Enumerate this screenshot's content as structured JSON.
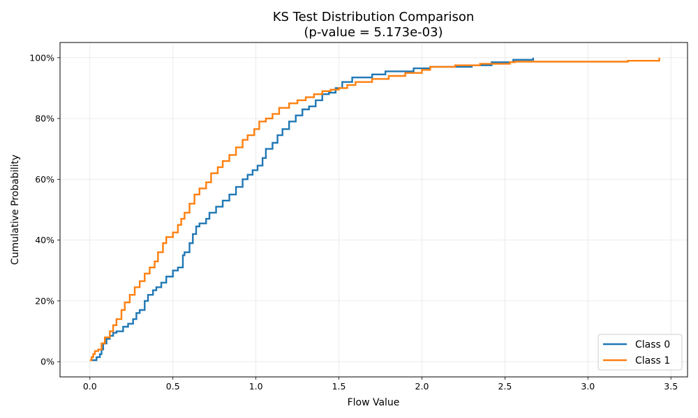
{
  "chart_data": {
    "type": "line",
    "step": true,
    "title_line1": "KS Test Distribution Comparison",
    "title_line2": "(p-value = 5.173e-03)",
    "xlabel": "Flow Value",
    "ylabel": "Cumulative Probability",
    "xlim": [
      -0.18,
      3.6
    ],
    "ylim": [
      -0.05,
      1.05
    ],
    "xticks": [
      0.0,
      0.5,
      1.0,
      1.5,
      2.0,
      2.5,
      3.0,
      3.5
    ],
    "xtick_labels": [
      "0.0",
      "0.5",
      "1.0",
      "1.5",
      "2.0",
      "2.5",
      "3.0",
      "3.5"
    ],
    "yticks": [
      0,
      0.2,
      0.4,
      0.6,
      0.8,
      1.0
    ],
    "ytick_labels": [
      "0%",
      "20%",
      "40%",
      "60%",
      "80%",
      "100%"
    ],
    "grid": true,
    "legend_position": "bottom-right",
    "series": [
      {
        "name": "Class 0",
        "color": "#1f77b4",
        "x": [
          0.01,
          0.04,
          0.06,
          0.07,
          0.08,
          0.1,
          0.12,
          0.14,
          0.16,
          0.2,
          0.23,
          0.26,
          0.28,
          0.3,
          0.33,
          0.35,
          0.38,
          0.4,
          0.43,
          0.46,
          0.5,
          0.53,
          0.56,
          0.57,
          0.6,
          0.62,
          0.64,
          0.66,
          0.7,
          0.72,
          0.76,
          0.8,
          0.84,
          0.88,
          0.92,
          0.95,
          0.98,
          1.01,
          1.04,
          1.06,
          1.1,
          1.13,
          1.16,
          1.2,
          1.24,
          1.28,
          1.32,
          1.36,
          1.4,
          1.44,
          1.48,
          1.52,
          1.58,
          1.7,
          1.78,
          1.95,
          2.05,
          2.3,
          2.42,
          2.55,
          2.67
        ],
        "y": [
          0.005,
          0.015,
          0.025,
          0.04,
          0.06,
          0.075,
          0.085,
          0.095,
          0.1,
          0.115,
          0.125,
          0.14,
          0.16,
          0.17,
          0.2,
          0.22,
          0.235,
          0.245,
          0.26,
          0.28,
          0.3,
          0.31,
          0.35,
          0.36,
          0.39,
          0.42,
          0.445,
          0.455,
          0.47,
          0.49,
          0.51,
          0.53,
          0.55,
          0.575,
          0.6,
          0.615,
          0.63,
          0.645,
          0.67,
          0.7,
          0.72,
          0.745,
          0.765,
          0.79,
          0.81,
          0.83,
          0.84,
          0.86,
          0.88,
          0.885,
          0.9,
          0.92,
          0.935,
          0.945,
          0.955,
          0.965,
          0.97,
          0.975,
          0.985,
          0.993,
          1.0
        ]
      },
      {
        "name": "Class 1",
        "color": "#ff7f0e",
        "x": [
          0.0,
          0.01,
          0.02,
          0.03,
          0.05,
          0.07,
          0.09,
          0.12,
          0.14,
          0.16,
          0.19,
          0.21,
          0.24,
          0.27,
          0.3,
          0.33,
          0.36,
          0.39,
          0.41,
          0.44,
          0.46,
          0.5,
          0.53,
          0.55,
          0.57,
          0.6,
          0.63,
          0.66,
          0.7,
          0.73,
          0.77,
          0.8,
          0.84,
          0.88,
          0.92,
          0.95,
          0.99,
          1.02,
          1.06,
          1.1,
          1.14,
          1.2,
          1.25,
          1.3,
          1.35,
          1.4,
          1.45,
          1.5,
          1.55,
          1.6,
          1.7,
          1.8,
          1.9,
          2.0,
          2.05,
          2.2,
          2.35,
          2.53,
          2.56,
          3.24,
          3.43
        ],
        "y": [
          0.005,
          0.015,
          0.025,
          0.035,
          0.04,
          0.06,
          0.08,
          0.1,
          0.12,
          0.14,
          0.17,
          0.195,
          0.22,
          0.245,
          0.265,
          0.29,
          0.31,
          0.33,
          0.36,
          0.39,
          0.41,
          0.425,
          0.45,
          0.47,
          0.49,
          0.52,
          0.55,
          0.57,
          0.59,
          0.62,
          0.64,
          0.66,
          0.68,
          0.705,
          0.73,
          0.745,
          0.765,
          0.79,
          0.8,
          0.815,
          0.835,
          0.85,
          0.86,
          0.87,
          0.88,
          0.89,
          0.895,
          0.9,
          0.91,
          0.92,
          0.93,
          0.94,
          0.95,
          0.96,
          0.97,
          0.975,
          0.98,
          0.985,
          0.987,
          0.99,
          1.0
        ]
      }
    ]
  }
}
